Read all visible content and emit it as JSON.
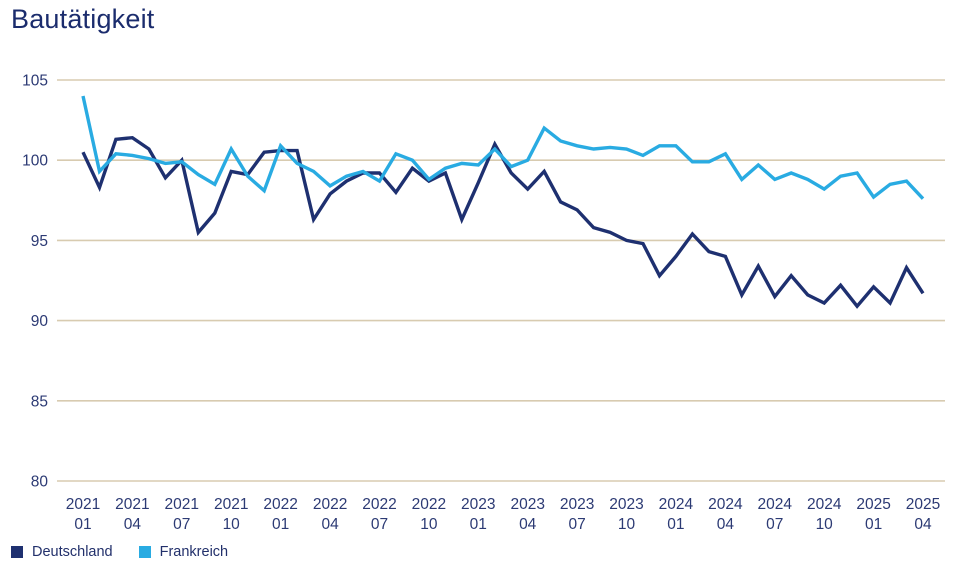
{
  "title": "Bautätigkeit",
  "legend": {
    "items": [
      {
        "label": "Deutschland",
        "color": "#1e3070"
      },
      {
        "label": "Frankreich",
        "color": "#29abe2"
      }
    ]
  },
  "colors": {
    "grid": "#d8cbb0",
    "tick_text": "#2c3a74",
    "title_text": "#1b2c6d",
    "background": "#ffffff"
  },
  "chart_data": {
    "type": "line",
    "title": "Bautätigkeit",
    "grid": "horizontal",
    "legend_position": "bottom-left",
    "ylim": [
      80,
      105
    ],
    "yticks": [
      105,
      100,
      95,
      90,
      85,
      80
    ],
    "x_tick_every": 3,
    "categories": [
      "2021-01",
      "2021-02",
      "2021-03",
      "2021-04",
      "2021-05",
      "2021-06",
      "2021-07",
      "2021-08",
      "2021-09",
      "2021-10",
      "2021-11",
      "2021-12",
      "2022-01",
      "2022-02",
      "2022-03",
      "2022-04",
      "2022-05",
      "2022-06",
      "2022-07",
      "2022-08",
      "2022-09",
      "2022-10",
      "2022-11",
      "2022-12",
      "2023-01",
      "2023-02",
      "2023-03",
      "2023-04",
      "2023-05",
      "2023-06",
      "2023-07",
      "2023-08",
      "2023-09",
      "2023-10",
      "2023-11",
      "2023-12",
      "2024-01",
      "2024-02",
      "2024-03",
      "2024-04",
      "2024-05",
      "2024-06",
      "2024-07",
      "2024-08",
      "2024-09",
      "2024-10",
      "2024-11",
      "2024-12",
      "2025-01",
      "2025-02",
      "2025-03",
      "2025-04"
    ],
    "series": [
      {
        "name": "Deutschland",
        "color": "#1e3070",
        "values": [
          100.5,
          98.3,
          101.3,
          101.4,
          100.7,
          98.9,
          100.0,
          95.5,
          96.7,
          99.3,
          99.1,
          100.5,
          100.6,
          100.6,
          96.3,
          97.9,
          98.7,
          99.2,
          99.2,
          98.0,
          99.5,
          98.7,
          99.2,
          96.3,
          98.6,
          101.0,
          99.2,
          98.2,
          99.3,
          97.4,
          96.9,
          95.8,
          95.5,
          95.0,
          94.8,
          92.8,
          94.0,
          95.4,
          94.3,
          94.0,
          91.6,
          93.4,
          91.5,
          92.8,
          91.6,
          91.1,
          92.2,
          90.9,
          92.1,
          91.1,
          93.3,
          91.7
        ]
      },
      {
        "name": "Frankreich",
        "color": "#29abe2",
        "values": [
          104.0,
          99.3,
          100.4,
          100.3,
          100.1,
          99.8,
          99.9,
          99.1,
          98.5,
          100.7,
          99.0,
          98.1,
          100.9,
          99.8,
          99.3,
          98.4,
          99.0,
          99.3,
          98.7,
          100.4,
          100.0,
          98.8,
          99.5,
          99.8,
          99.7,
          100.7,
          99.6,
          100.0,
          102.0,
          101.2,
          100.9,
          100.7,
          100.8,
          100.7,
          100.3,
          100.9,
          100.9,
          99.9,
          99.9,
          100.4,
          98.8,
          99.7,
          98.8,
          99.2,
          98.8,
          98.2,
          99.0,
          99.2,
          97.7,
          98.5,
          98.7,
          97.6
        ]
      }
    ]
  }
}
